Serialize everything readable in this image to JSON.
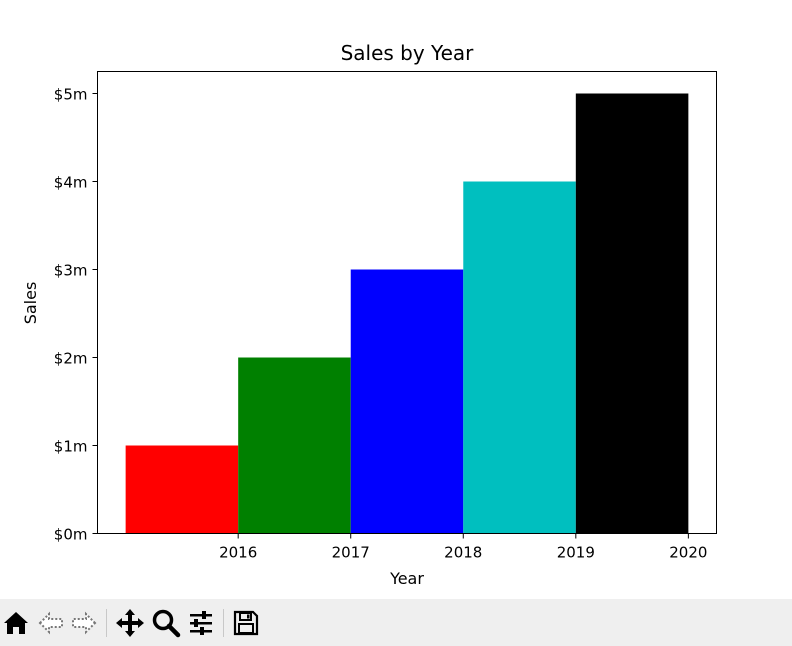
{
  "chart_data": {
    "type": "bar",
    "title": "Sales by Year",
    "xlabel": "Year",
    "ylabel": "Sales",
    "categories": [
      "2016",
      "2017",
      "2018",
      "2019",
      "2020"
    ],
    "values": [
      1,
      2,
      3,
      4,
      5
    ],
    "bar_colors": [
      "#ff0000",
      "#008000",
      "#0000ff",
      "#00bfbf",
      "#000000"
    ],
    "ylim": [
      0,
      5.25
    ],
    "xlim": [
      2014.75,
      2020.25
    ],
    "bar_alignment": "edge-left",
    "yticks": [
      {
        "value": 0,
        "label": "$0m"
      },
      {
        "value": 1,
        "label": "$1m"
      },
      {
        "value": 2,
        "label": "$2m"
      },
      {
        "value": 3,
        "label": "$3m"
      },
      {
        "value": 4,
        "label": "$4m"
      },
      {
        "value": 5,
        "label": "$5m"
      }
    ],
    "xticks": [
      {
        "value": 2016,
        "label": "2016"
      },
      {
        "value": 2017,
        "label": "2017"
      },
      {
        "value": 2018,
        "label": "2018"
      },
      {
        "value": 2019,
        "label": "2019"
      },
      {
        "value": 2020,
        "label": "2020"
      }
    ],
    "grid": false,
    "legend": "none"
  },
  "toolbar": {
    "buttons": [
      {
        "name": "home-button",
        "icon": "home-icon"
      },
      {
        "name": "back-button",
        "icon": "back-arrow-icon"
      },
      {
        "name": "forward-button",
        "icon": "forward-arrow-icon"
      },
      {
        "name": "pan-button",
        "icon": "move-icon"
      },
      {
        "name": "zoom-button",
        "icon": "magnifier-icon"
      },
      {
        "name": "configure-subplots-button",
        "icon": "sliders-icon"
      },
      {
        "name": "save-button",
        "icon": "floppy-disk-icon"
      }
    ]
  }
}
